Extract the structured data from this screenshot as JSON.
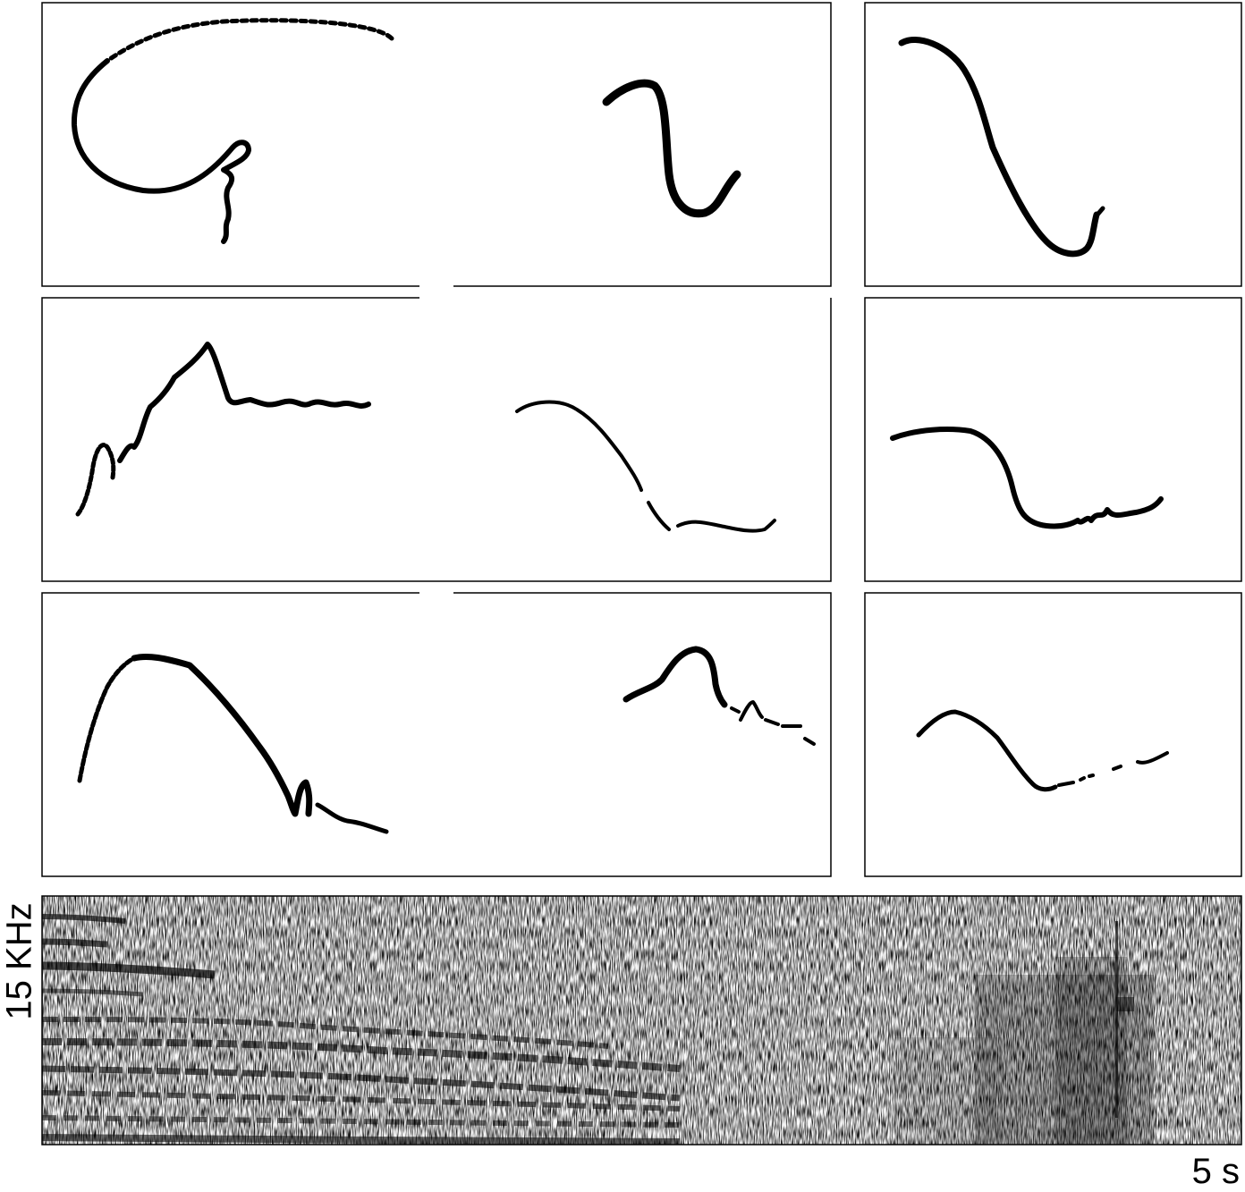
{
  "spectrogram": {
    "y_label": "15 KHz",
    "x_label": "5 s"
  },
  "colors": {
    "ink": "#000000",
    "background": "#ffffff"
  },
  "contour_panels": [
    {
      "name": "panel-1-1"
    },
    {
      "name": "panel-1-2"
    },
    {
      "name": "panel-1-3"
    },
    {
      "name": "panel-2-1"
    },
    {
      "name": "panel-2-2"
    },
    {
      "name": "panel-2-3"
    },
    {
      "name": "panel-3-1"
    },
    {
      "name": "panel-3-2"
    },
    {
      "name": "panel-3-3"
    }
  ]
}
